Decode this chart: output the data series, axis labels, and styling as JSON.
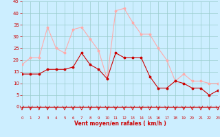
{
  "hours": [
    0,
    1,
    2,
    3,
    4,
    5,
    6,
    7,
    8,
    9,
    10,
    11,
    12,
    13,
    14,
    15,
    16,
    17,
    18,
    19,
    20,
    21,
    22,
    23
  ],
  "wind_avg": [
    14,
    14,
    14,
    16,
    16,
    16,
    17,
    23,
    18,
    16,
    12,
    23,
    21,
    21,
    21,
    13,
    8,
    8,
    11,
    10,
    8,
    8,
    5,
    7
  ],
  "wind_gust": [
    18,
    21,
    21,
    34,
    25,
    23,
    33,
    34,
    29,
    24,
    12,
    41,
    42,
    36,
    31,
    31,
    25,
    20,
    11,
    14,
    11,
    11,
    10,
    10
  ],
  "bg_color": "#cceeff",
  "grid_color": "#99cccc",
  "line_avg_color": "#cc0000",
  "line_gust_color": "#ffaaaa",
  "xlabel": "Vent moyen/en rafales ( km/h )",
  "ylim": [
    0,
    45
  ],
  "yticks": [
    0,
    5,
    10,
    15,
    20,
    25,
    30,
    35,
    40,
    45
  ],
  "tick_color": "#cc0000",
  "label_color": "#cc0000",
  "spine_color": "#cc0000",
  "spine_bottom_color": "#cc0000"
}
